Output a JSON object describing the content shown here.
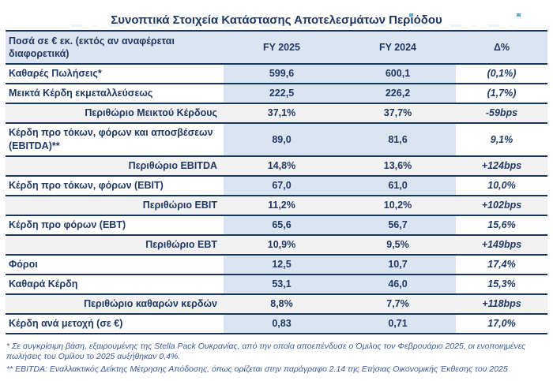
{
  "page": {
    "title": "Συνοπτικά Στοιχεία Κατάστασης Αποτελεσμάτων Περιόδου"
  },
  "table": {
    "header": {
      "col1": "Ποσά σε € εκ. (εκτός αν αναφέρεται διαφορετικά)",
      "col2": "FY 2025",
      "col3": "FY 2024",
      "col4": "Δ%"
    },
    "rows": [
      {
        "type": "data",
        "label": "Καθαρές Πωλήσεις*",
        "fy2025": "599,6",
        "fy2024": "600,1",
        "delta": "(0,1%)"
      },
      {
        "type": "data",
        "label": "Μεικτά Κέρδη εκμεταλλεύσεως",
        "fy2025": "222,5",
        "fy2024": "226,2",
        "delta": "(1,7%)"
      },
      {
        "type": "margin",
        "label": "Περιθώριο Μεικτού Κέρδους",
        "fy2025": "37,1%",
        "fy2024": "37,7%",
        "delta": "-59bps"
      },
      {
        "type": "data",
        "label": "Κέρδη προ τόκων, φόρων και αποσβέσεων (EBITDA)**",
        "fy2025": "89,0",
        "fy2024": "81,6",
        "delta": "9,1%"
      },
      {
        "type": "margin",
        "label": "Περιθώριο EBITDA",
        "fy2025": "14,8%",
        "fy2024": "13,6%",
        "delta": "+124bps"
      },
      {
        "type": "data",
        "label": "Κέρδη προ τόκων, φόρων (EBIT)",
        "fy2025": "67,0",
        "fy2024": "61,0",
        "delta": "10,0%"
      },
      {
        "type": "margin",
        "label": "Περιθώριο EBIT",
        "fy2025": "11,2%",
        "fy2024": "10,2%",
        "delta": "+102bps"
      },
      {
        "type": "data",
        "label": "Κέρδη προ φόρων (EBT)",
        "fy2025": "65,6",
        "fy2024": "56,7",
        "delta": "15,6%"
      },
      {
        "type": "margin",
        "label": "Περιθώριο EBT",
        "fy2025": "10,9%",
        "fy2024": "9,5%",
        "delta": "+149bps"
      },
      {
        "type": "data",
        "label": "Φόροι",
        "fy2025": "12,5",
        "fy2024": "10,7",
        "delta": "17,4%"
      },
      {
        "type": "data",
        "label": "Καθαρά Κέρδη",
        "fy2025": "53,1",
        "fy2024": "46,0",
        "delta": "15,3%"
      },
      {
        "type": "margin",
        "label": "Περιθώριο καθαρών κερδών",
        "fy2025": "8,8%",
        "fy2024": "7,7%",
        "delta": "+118bps"
      },
      {
        "type": "data",
        "label": "Κέρδη ανά μετοχή (σε €)",
        "fy2025": "0,83",
        "fy2024": "0,71",
        "delta": "17,0%"
      }
    ]
  },
  "footnotes": [
    "* Σε συγκρίσιμη βάση, εξαιρουμένης της Stella Pack Ουκρανίας, από την οποία αποεπένδυσε ο Όμιλος τον Φεβρουάριο 2025, οι ενοποιημένες πωλήσεις του Ομίλου το 2025 αυξήθηκαν 0,4%.",
    "** EBITDA: Εναλλακτικός Δείκτης Μέτρησης Απόδοσης, όπως ορίζεται στην παράγραφο 2.14 της Ετήσιας Οικονομικής Έκθεσης του 2025"
  ],
  "colors": {
    "navy": "#1f3864",
    "border": "#17375d",
    "band": "#dbe5f1",
    "row_shade": "#f2f2f2",
    "footnote_text": "#3c5a99",
    "fragment_blue": "#5fa8d3"
  }
}
